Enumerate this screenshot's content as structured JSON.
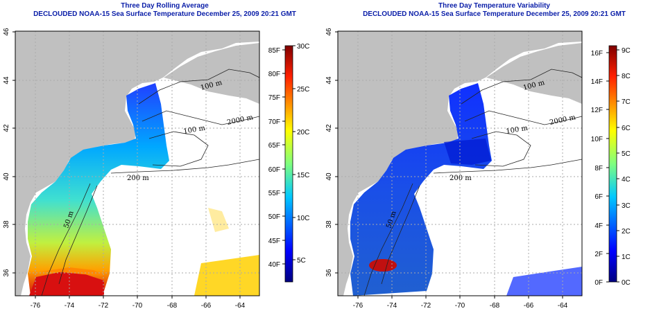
{
  "panels": [
    {
      "title": "Three Day Rolling Average",
      "subtitle": "DECLOUDED NOAA-15 Sea Surface Temperature December 25, 2009 20:21 GMT",
      "colorbar": {
        "left_labels": [
          "85F",
          "80F",
          "75F",
          "70F",
          "65F",
          "60F",
          "55F",
          "50F",
          "45F",
          "40F"
        ],
        "right_labels": [
          "30C",
          "25C",
          "20C",
          "15C",
          "10C",
          "5C"
        ]
      }
    },
    {
      "title": "Three Day Temperature Variability",
      "subtitle": "DECLOUDED NOAA-15 Sea Surface Temperature December 25, 2009 20:21 GMT",
      "colorbar": {
        "left_labels": [
          "16F",
          "14F",
          "12F",
          "10F",
          "8F",
          "6F",
          "4F",
          "2F",
          "0F"
        ],
        "right_labels": [
          "9C",
          "8C",
          "7C",
          "6C",
          "5C",
          "4C",
          "3C",
          "2C",
          "1C",
          "0C"
        ]
      }
    }
  ],
  "axes": {
    "x_ticks": [
      "-76",
      "-74",
      "-72",
      "-70",
      "-68",
      "-66",
      "-64"
    ],
    "y_ticks": [
      "46",
      "44",
      "42",
      "40",
      "38",
      "36"
    ]
  },
  "isobaths": [
    "100 m",
    "100 m",
    "200 m",
    "2000 m",
    "50 m",
    "200 m",
    "50 m"
  ],
  "colors": {
    "land": "#c0c0c0",
    "title": "#0a1ea8",
    "contour": "#222222"
  }
}
